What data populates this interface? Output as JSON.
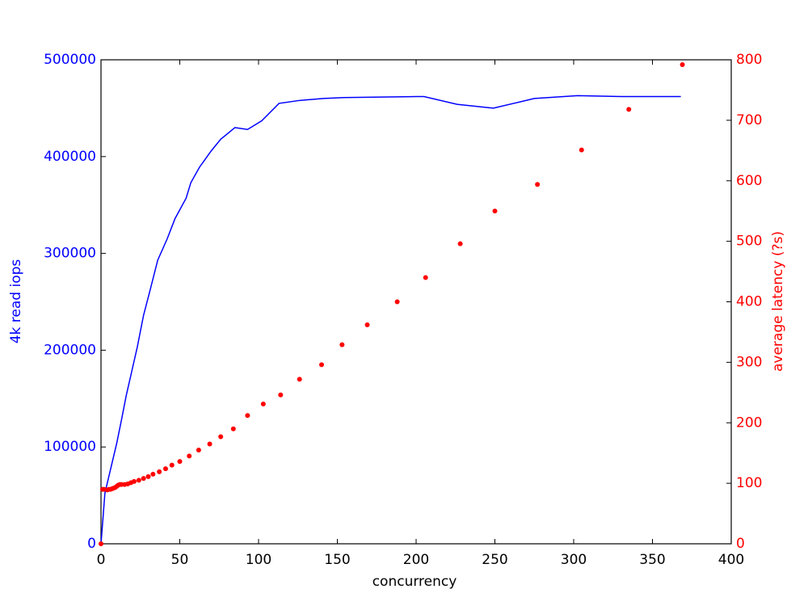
{
  "chart_data": {
    "type": "line",
    "xlabel": "concurrency",
    "ylabel": "4k read iops",
    "y2label": "average latency (?s)",
    "xlim": [
      0,
      400
    ],
    "xticks": [
      0,
      50,
      100,
      150,
      200,
      250,
      300,
      350,
      400
    ],
    "ylim": [
      0,
      500000
    ],
    "yticks": [
      0,
      100000,
      200000,
      300000,
      400000,
      500000
    ],
    "y2lim": [
      0,
      800
    ],
    "y2ticks": [
      0,
      100,
      200,
      300,
      400,
      500,
      600,
      700,
      800
    ],
    "series": [
      {
        "type": "line",
        "axis": "y",
        "color": "#0000ff",
        "x": [
          0,
          2.5,
          10,
          13,
          16,
          19.5,
          23,
          27,
          31,
          36,
          42,
          47,
          54,
          57,
          62.5,
          70,
          76,
          85,
          93,
          102,
          113,
          126,
          141,
          154,
          200,
          205,
          226,
          249,
          275,
          302.5,
          331,
          368
        ],
        "values": [
          0,
          52500,
          104000,
          128000,
          153000,
          178000,
          203000,
          236000,
          261000,
          293000,
          315000,
          336000,
          357000,
          373000,
          389000,
          406000,
          418000,
          430000,
          428000,
          437000,
          455000,
          458000,
          460000,
          461000,
          462000,
          462000,
          454000,
          450000,
          460000,
          463000,
          462000,
          462000
        ]
      },
      {
        "type": "scatter",
        "axis": "y2",
        "color": "#ff0000",
        "x": [
          0,
          1,
          2,
          4,
          5,
          6,
          7,
          8,
          9,
          10,
          11,
          12,
          13,
          15,
          17,
          19,
          21,
          24,
          27,
          30,
          33,
          37,
          41,
          45,
          50,
          56,
          62,
          69,
          76,
          84,
          93,
          103,
          114,
          126,
          140,
          153,
          169,
          188,
          206,
          228,
          250,
          277,
          305,
          335,
          369
        ],
        "values": [
          0,
          90,
          90,
          89,
          90,
          90,
          91,
          92,
          93,
          95,
          97,
          98,
          98,
          98,
          99,
          101,
          103,
          105,
          108,
          111,
          115,
          119,
          124,
          130,
          136,
          145,
          155,
          165,
          177,
          190,
          212,
          231,
          246,
          272,
          296,
          329,
          362,
          400,
          440,
          496,
          550,
          594,
          651,
          718,
          792
        ]
      }
    ]
  }
}
